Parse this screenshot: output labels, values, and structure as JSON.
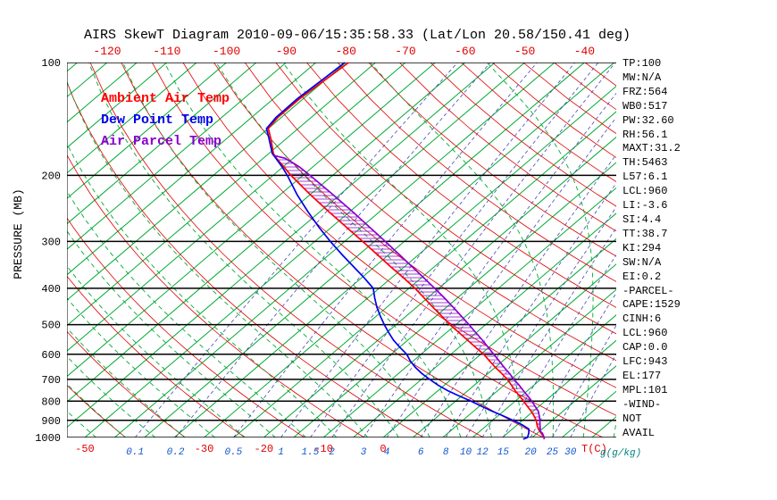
{
  "chart_data": {
    "type": "line",
    "title": "AIRS SkewT Diagram 2010-09-06/15:35:58.33 (Lat/Lon 20.58/150.41 deg)",
    "x_axis": {
      "label": "T(C)",
      "bottom_ticks": [
        -50,
        -30,
        -20,
        -10,
        0
      ],
      "top_ticks": [
        -120,
        -110,
        -100,
        -90,
        -80,
        -70,
        -60,
        -50,
        -40
      ]
    },
    "y_axis": {
      "label": "PRESSURE (MB)",
      "scale": "log",
      "range": [
        100,
        1000
      ],
      "ticks": [
        100,
        200,
        300,
        400,
        500,
        600,
        700,
        800,
        900,
        1000
      ]
    },
    "mixing_ratio": {
      "label": "g(g/kg)",
      "ticks": [
        0.1,
        0.2,
        0.5,
        1,
        1.5,
        2,
        3,
        4,
        6,
        8,
        10,
        12,
        15,
        20,
        25,
        30
      ]
    },
    "series": [
      {
        "name": "Ambient Air Temp",
        "color": "#ff0000",
        "points": [
          [
            1010,
            27.3
          ],
          [
            1000,
            27.0
          ],
          [
            975,
            25.7
          ],
          [
            950,
            24.4
          ],
          [
            925,
            23.3
          ],
          [
            900,
            22.3
          ],
          [
            875,
            21.0
          ],
          [
            850,
            19.6
          ],
          [
            825,
            18.0
          ],
          [
            800,
            16.4
          ],
          [
            775,
            14.7
          ],
          [
            750,
            12.9
          ],
          [
            725,
            11.2
          ],
          [
            700,
            9.4
          ],
          [
            675,
            7.3
          ],
          [
            650,
            5.0
          ],
          [
            625,
            2.8
          ],
          [
            600,
            0.5
          ],
          [
            575,
            -2.2
          ],
          [
            550,
            -5.0
          ],
          [
            525,
            -7.9
          ],
          [
            500,
            -11.0
          ],
          [
            475,
            -14.0
          ],
          [
            450,
            -17.2
          ],
          [
            425,
            -20.5
          ],
          [
            400,
            -24.0
          ],
          [
            375,
            -28.0
          ],
          [
            350,
            -32.4
          ],
          [
            325,
            -37.0
          ],
          [
            300,
            -42.0
          ],
          [
            275,
            -47.5
          ],
          [
            250,
            -53.5
          ],
          [
            225,
            -60.0
          ],
          [
            200,
            -67.0
          ],
          [
            190,
            -69.8
          ],
          [
            180,
            -72.8
          ],
          [
            175,
            -74.2
          ],
          [
            160,
            -77.5
          ],
          [
            150,
            -80.0
          ],
          [
            140,
            -80.6
          ],
          [
            125,
            -80.6
          ],
          [
            110,
            -80.0
          ],
          [
            100,
            -79.5
          ]
        ]
      },
      {
        "name": "Dew Point Temp",
        "color": "#0000ee",
        "points": [
          [
            1010,
            23.8
          ],
          [
            1000,
            24.2
          ],
          [
            975,
            23.6
          ],
          [
            950,
            22.8
          ],
          [
            925,
            20.8
          ],
          [
            900,
            18.4
          ],
          [
            875,
            15.8
          ],
          [
            850,
            13.0
          ],
          [
            825,
            10.3
          ],
          [
            800,
            7.6
          ],
          [
            775,
            4.6
          ],
          [
            750,
            1.6
          ],
          [
            725,
            -1.1
          ],
          [
            700,
            -3.6
          ],
          [
            675,
            -6.1
          ],
          [
            650,
            -8.4
          ],
          [
            625,
            -10.5
          ],
          [
            600,
            -12.4
          ],
          [
            575,
            -14.9
          ],
          [
            550,
            -17.4
          ],
          [
            525,
            -19.7
          ],
          [
            500,
            -22.0
          ],
          [
            475,
            -24.3
          ],
          [
            450,
            -26.6
          ],
          [
            425,
            -28.8
          ],
          [
            400,
            -31.0
          ],
          [
            375,
            -34.6
          ],
          [
            350,
            -38.6
          ],
          [
            325,
            -42.9
          ],
          [
            300,
            -47.4
          ],
          [
            275,
            -52.1
          ],
          [
            250,
            -57.0
          ],
          [
            225,
            -62.2
          ],
          [
            200,
            -67.6
          ],
          [
            190,
            -70.1
          ],
          [
            180,
            -72.9
          ],
          [
            175,
            -74.4
          ],
          [
            160,
            -77.8
          ],
          [
            150,
            -80.3
          ],
          [
            140,
            -80.9
          ],
          [
            125,
            -81.0
          ],
          [
            110,
            -80.5
          ],
          [
            100,
            -80.2
          ]
        ]
      },
      {
        "name": "Air Parcel Temp",
        "color": "#8800cc",
        "points": [
          [
            1010,
            27.3
          ],
          [
            1000,
            27.0
          ],
          [
            975,
            25.9
          ],
          [
            960,
            25.0
          ],
          [
            950,
            24.7
          ],
          [
            925,
            23.8
          ],
          [
            900,
            22.9
          ],
          [
            875,
            21.9
          ],
          [
            850,
            20.8
          ],
          [
            825,
            19.3
          ],
          [
            800,
            17.8
          ],
          [
            775,
            16.1
          ],
          [
            750,
            14.3
          ],
          [
            725,
            12.5
          ],
          [
            700,
            10.5
          ],
          [
            675,
            8.6
          ],
          [
            650,
            6.5
          ],
          [
            625,
            4.4
          ],
          [
            600,
            2.2
          ],
          [
            575,
            -0.1
          ],
          [
            550,
            -2.5
          ],
          [
            525,
            -5.1
          ],
          [
            500,
            -7.8
          ],
          [
            475,
            -10.7
          ],
          [
            450,
            -13.8
          ],
          [
            425,
            -17.1
          ],
          [
            400,
            -20.7
          ],
          [
            375,
            -24.6
          ],
          [
            350,
            -28.8
          ],
          [
            325,
            -33.3
          ],
          [
            300,
            -38.2
          ],
          [
            275,
            -43.6
          ],
          [
            250,
            -49.5
          ],
          [
            225,
            -56.2
          ],
          [
            200,
            -63.8
          ],
          [
            190,
            -67.2
          ],
          [
            185,
            -69.2
          ],
          [
            180,
            -71.4
          ],
          [
            177,
            -73.8
          ]
        ]
      }
    ],
    "cape_hatch": {
      "between": [
        "Ambient Air Temp",
        "Air Parcel Temp"
      ],
      "pressure_range": [
        943,
        177
      ]
    }
  },
  "stats_panel": {
    "lines": [
      "TP:100",
      "MW:N/A",
      "FRZ:564",
      "WB0:517",
      "PW:32.60",
      "RH:56.1",
      "MAXT:31.2",
      "TH:5463",
      "L57:6.1",
      "LCL:960",
      "LI:-3.6",
      "SI:4.4",
      "TT:38.7",
      "KI:294",
      "SW:N/A",
      "EI:0.2",
      "-PARCEL-",
      "CAPE:1529",
      "CINH:6",
      "LCL:960",
      "CAP:0.0",
      "LFC:943",
      "EL:177",
      "MPL:101",
      "-WIND-",
      "NOT",
      "AVAIL"
    ]
  },
  "colors": {
    "isotherm": "#00aa33",
    "dry_adiabat": "#e00000",
    "moist_adiabat": "#00aa33",
    "mixing_line": "#4848b4",
    "pressure_line": "#000000",
    "hatch": "#8800cc",
    "temp_tick_label": "#e00000",
    "mixing_label": "#1055cc",
    "mixing_unit_label": "#008080",
    "pressure_tick_label": "#000000"
  }
}
